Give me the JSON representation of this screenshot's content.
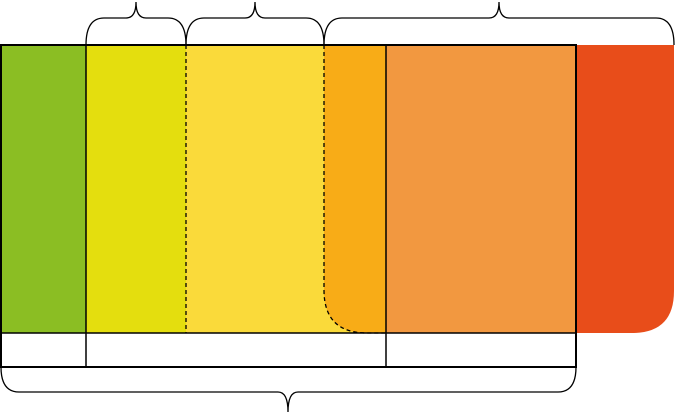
{
  "diagram": {
    "bands": [
      {
        "id": "green",
        "color": "#8BBE23"
      },
      {
        "id": "yellow-green",
        "color": "#E4DE0E"
      },
      {
        "id": "yellow",
        "color": "#FADA3A"
      },
      {
        "id": "amber",
        "color": "#F8AC17"
      },
      {
        "id": "orange",
        "color": "#F29840"
      },
      {
        "id": "red",
        "color": "#E84D1A"
      }
    ],
    "line_color": "#000000",
    "background": "#FFFFFF"
  }
}
